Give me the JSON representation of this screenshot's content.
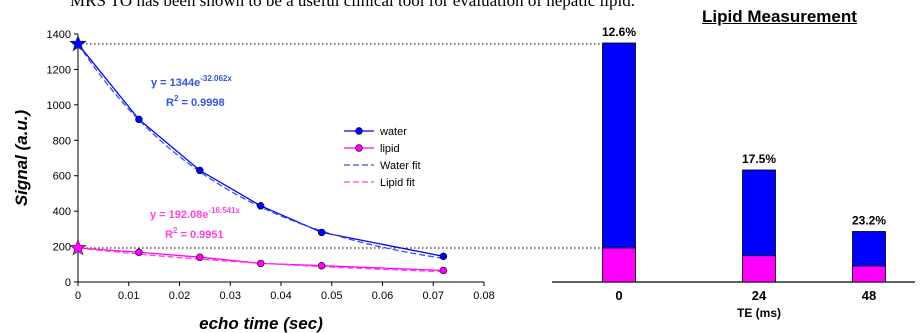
{
  "header": {
    "cut_text": "MRS TO has been shown to be a useful clinical tool for evaluation of hepatic lipid."
  },
  "chart_data": [
    {
      "type": "scatter",
      "xlabel": "echo time (sec)",
      "ylabel": "Signal (a.u.)",
      "xlim": [
        0,
        0.08
      ],
      "ylim": [
        0,
        1400
      ],
      "x_ticks": [
        "0",
        "0.01",
        "0.02",
        "0.03",
        "0.04",
        "0.05",
        "0.06",
        "0.07",
        "0.08"
      ],
      "y_ticks": [
        "0",
        "200",
        "400",
        "600",
        "800",
        "1000",
        "1200",
        "1400"
      ],
      "series": [
        {
          "name": "water",
          "color": "#0000ff",
          "x": [
            0.012,
            0.024,
            0.036,
            0.048,
            0.072
          ],
          "y": [
            918,
            630,
            430,
            280,
            145
          ]
        },
        {
          "name": "lipid",
          "color": "#ff00ff",
          "x": [
            0.012,
            0.024,
            0.036,
            0.048,
            0.072
          ],
          "y": [
            168,
            140,
            105,
            92,
            65
          ]
        }
      ],
      "fits": [
        {
          "name": "Water fit",
          "color": "#3355dd",
          "a": 1344,
          "b": 32.062,
          "eq_base": "y = 1344e",
          "eq_exp": "-32.062x",
          "r2_label": "R",
          "r2_sup": "2",
          "r2_value": " = 0.9998"
        },
        {
          "name": "Lipid fit",
          "color": "#ff44dd",
          "a": 192.08,
          "b": 16.541,
          "eq_base": "y = 192.08e",
          "eq_exp": "-16.541x",
          "r2_label": "R",
          "r2_sup": "2",
          "r2_value": " = 0.9951"
        }
      ],
      "intercepts": [
        {
          "x": 0,
          "y": 1344,
          "color": "#0000ff"
        },
        {
          "x": 0,
          "y": 192.08,
          "color": "#ff00ff"
        }
      ],
      "reference_lines": [
        1344,
        192.08
      ],
      "grid": false,
      "legend_position": "right"
    },
    {
      "type": "bar",
      "title": "Lipid Measurement",
      "xlabel": "TE (ms)",
      "categories": [
        "0",
        "24",
        "48"
      ],
      "series": [
        {
          "name": "lipid",
          "color": "#ff00ff",
          "values": [
            192,
            148,
            90
          ]
        },
        {
          "name": "water",
          "color": "#0000ff",
          "values": [
            1152,
            482,
            194
          ]
        }
      ],
      "totals": [
        1344,
        630,
        284
      ],
      "value_labels": [
        "12.6%",
        "17.5%",
        "23.2%"
      ],
      "ylim": [
        0,
        1344
      ]
    }
  ]
}
